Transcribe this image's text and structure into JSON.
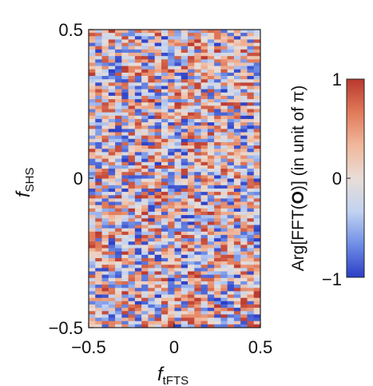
{
  "chart_data": {
    "type": "heatmap",
    "title": "",
    "xlabel": {
      "main": "f",
      "sub": "tFTS"
    },
    "ylabel": {
      "main": "f",
      "sub": "SHS"
    },
    "xlim": [
      -0.5,
      0.5
    ],
    "ylim": [
      -0.5,
      0.5
    ],
    "x_ticks": [
      "−0.5",
      "0",
      "0.5"
    ],
    "y_ticks": [
      "0.5",
      "0",
      "−0.5"
    ],
    "grid_cols": 26,
    "grid_rows": 90,
    "value_range": [
      -1,
      1
    ],
    "cell_values_note": "random-looking phase values uniformly spread between -1 and 1",
    "colorbar": {
      "label_parts": [
        "Arg[FFT(",
        "O",
        ")] (in unit of π)"
      ],
      "ticks": [
        "1",
        "0",
        "−1"
      ],
      "colors": [
        "#2b3ec6",
        "#6f8ee6",
        "#c2d3f2",
        "#e8ddd6",
        "#f1b79b",
        "#e07a59",
        "#b9382f"
      ]
    }
  }
}
